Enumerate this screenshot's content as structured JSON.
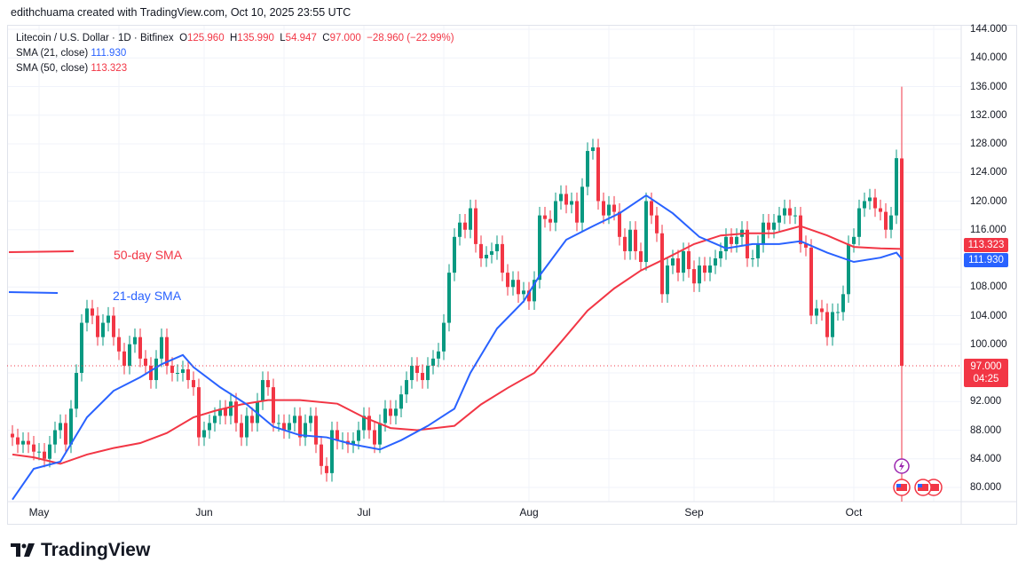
{
  "credit": "edithchuama created with TradingView.com, Oct 10, 2025 23:55 UTC",
  "legend": {
    "symbol": "Litecoin / U.S. Dollar · 1D · Bitfinex",
    "o_label": "O",
    "o": "125.960",
    "h_label": "H",
    "h": "135.990",
    "l_label": "L",
    "l": "54.947",
    "c_label": "C",
    "c": "97.000",
    "change": "−28.960 (−22.99%)",
    "sma21_label": "SMA (21, close)",
    "sma21": "111.930",
    "sma50_label": "SMA (50, close)",
    "sma50": "113.323"
  },
  "annotations": {
    "sma50": "50-day SMA",
    "sma21": "21-day SMA"
  },
  "tags": {
    "sma50": "113.323",
    "sma21": "111.930",
    "last": "97.000",
    "countdown": "04:25"
  },
  "logo": "TradingView",
  "colors": {
    "up": "#089981",
    "down": "#f23645",
    "sma21": "#2962ff",
    "sma50": "#f23645"
  },
  "chart_data": {
    "type": "candlestick",
    "title": "Litecoin / U.S. Dollar · 1D · Bitfinex",
    "ylim": [
      78,
      145
    ],
    "y_ticks": [
      "144.000",
      "140.000",
      "136.000",
      "132.000",
      "128.000",
      "124.000",
      "120.000",
      "116.000",
      "108.000",
      "104.000",
      "100.000",
      "92.000",
      "88.000",
      "84.000",
      "80.000"
    ],
    "month_ticks": [
      {
        "label": "May",
        "day": 5
      },
      {
        "label": "Jun",
        "day": 36
      },
      {
        "label": "Jul",
        "day": 66
      },
      {
        "label": "Aug",
        "day": 97
      },
      {
        "label": "Sep",
        "day": 128
      },
      {
        "label": "Oct",
        "day": 158
      }
    ],
    "first_open": 87.5,
    "closes": [
      87,
      86,
      86.5,
      86,
      85,
      85,
      84,
      86,
      88,
      89,
      86,
      91,
      96,
      103,
      105,
      104,
      101,
      103,
      104,
      101,
      99,
      97,
      100,
      101,
      98,
      97,
      95,
      98,
      101,
      97,
      96,
      96,
      96.5,
      95,
      94,
      87,
      88,
      89,
      90,
      91,
      90,
      92,
      89,
      87,
      90,
      89,
      92,
      95,
      94,
      89,
      89,
      88,
      89,
      90,
      87,
      89,
      90,
      86,
      83,
      82,
      88,
      86.5,
      86.5,
      86,
      86.5,
      88,
      90,
      88,
      86,
      89,
      91,
      90,
      91,
      93,
      95,
      97,
      96,
      95,
      97,
      98,
      99,
      103,
      110,
      115,
      117,
      116,
      119,
      114,
      112,
      112.5,
      113,
      114,
      110,
      108,
      109,
      107,
      107.5,
      106,
      109,
      118,
      117.5,
      117,
      120,
      121,
      119.5,
      120,
      117,
      122,
      127,
      127.5,
      120,
      118,
      119.5,
      118.5,
      115,
      113,
      116,
      113,
      111.5,
      120,
      118,
      115.5,
      107,
      111,
      112,
      110,
      113,
      110.5,
      108.5,
      111,
      110,
      111,
      112,
      113,
      115,
      114,
      115,
      116,
      112,
      112,
      114,
      117,
      116,
      117,
      118,
      119,
      118,
      118,
      114,
      113.5,
      104,
      105,
      104.5,
      101,
      104.5,
      104.5,
      107,
      114,
      115,
      119,
      120,
      120.5,
      119,
      118.5,
      116,
      118,
      126,
      97
    ],
    "last_candle": {
      "open": 125.96,
      "high": 135.99,
      "low": 54.947,
      "close": 97.0
    },
    "wick": 1.2,
    "sma21": [
      [
        0,
        78.3
      ],
      [
        4,
        82.6
      ],
      [
        9,
        83.6
      ],
      [
        14,
        89.8
      ],
      [
        19,
        93.5
      ],
      [
        24,
        95.4
      ],
      [
        28,
        97.2
      ],
      [
        32,
        98.5
      ],
      [
        34,
        96.8
      ],
      [
        39,
        94
      ],
      [
        44,
        91.6
      ],
      [
        49,
        88.5
      ],
      [
        54,
        87.3
      ],
      [
        59,
        87
      ],
      [
        64,
        86
      ],
      [
        69,
        85.3
      ],
      [
        73,
        86.6
      ],
      [
        78,
        88.6
      ],
      [
        83,
        91
      ],
      [
        86,
        96
      ],
      [
        91,
        102.2
      ],
      [
        96,
        106
      ],
      [
        99,
        109.6
      ],
      [
        104,
        114.6
      ],
      [
        109,
        116.5
      ],
      [
        114,
        118.3
      ],
      [
        119,
        120.8
      ],
      [
        124,
        118.3
      ],
      [
        129,
        115
      ],
      [
        134,
        113.4
      ],
      [
        139,
        114
      ],
      [
        144,
        114
      ],
      [
        148,
        114.4
      ],
      [
        153,
        112.8
      ],
      [
        158,
        111.5
      ],
      [
        163,
        112.1
      ],
      [
        166,
        112.8
      ],
      [
        167,
        111.93
      ]
    ],
    "sma50": [
      [
        0,
        84.6
      ],
      [
        4,
        84.2
      ],
      [
        9,
        83.3
      ],
      [
        14,
        84.6
      ],
      [
        19,
        85.5
      ],
      [
        24,
        86.2
      ],
      [
        29,
        87.6
      ],
      [
        34,
        89.8
      ],
      [
        38,
        90.7
      ],
      [
        43,
        91.6
      ],
      [
        48,
        92.2
      ],
      [
        54,
        92.2
      ],
      [
        61,
        91.7
      ],
      [
        66,
        89.8
      ],
      [
        71,
        88.3
      ],
      [
        76,
        88
      ],
      [
        83,
        88.6
      ],
      [
        88,
        91.6
      ],
      [
        93,
        93.9
      ],
      [
        98,
        96
      ],
      [
        103,
        100.3
      ],
      [
        108,
        104.7
      ],
      [
        113,
        107.8
      ],
      [
        118,
        110.3
      ],
      [
        123,
        112.1
      ],
      [
        128,
        114
      ],
      [
        133,
        115.2
      ],
      [
        138,
        115.5
      ],
      [
        143,
        115.5
      ],
      [
        148,
        116.5
      ],
      [
        153,
        115.2
      ],
      [
        158,
        113.6
      ],
      [
        163,
        113.4
      ],
      [
        167,
        113.323
      ]
    ],
    "last_price": 97.0
  }
}
